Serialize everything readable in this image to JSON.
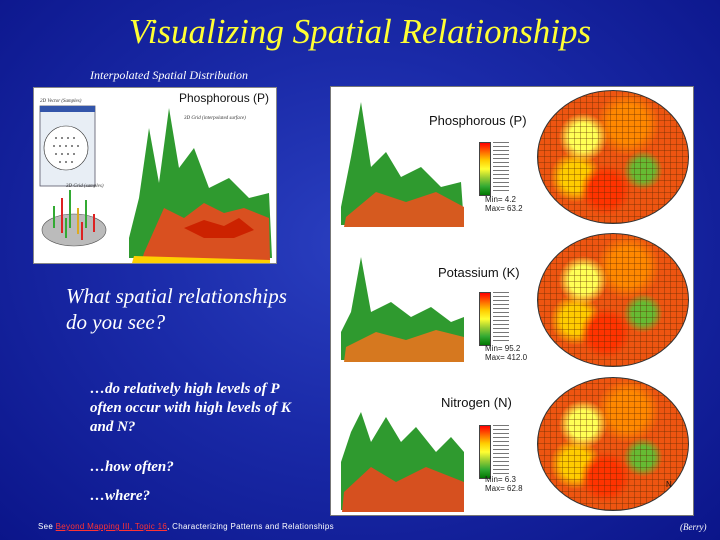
{
  "title": "Visualizing Spatial Relationships",
  "subtitle": "Interpolated Spatial Distribution",
  "left_panel": {
    "heading": "Phosphorous (P)",
    "label_vector": "2D Vector (Samples)",
    "label_grid": "3D Grid (interpolated surface)",
    "label_samples": "3D Grid (samples)"
  },
  "maps": [
    {
      "name": "Phosphorous (P)",
      "min": "Min= 4.2",
      "max": "Max= 63.2"
    },
    {
      "name": "Potassium (K)",
      "min": "Min= 95.2",
      "max": "Max= 412.0"
    },
    {
      "name": "Nitrogen (N)",
      "min": "Min= 6.3",
      "max": "Max= 62.8"
    }
  ],
  "north_label": "N",
  "question": "What spatial relationships do you see?",
  "bullets": [
    "…do relatively high levels of P often occur with high levels of K and N?",
    "…how often?",
    "…where?"
  ],
  "footer": {
    "prefix": "See ",
    "link": "Beyond Mapping III, Topic 16",
    "suffix": ", Characterizing Patterns and Relationships"
  },
  "credit": "(Berry)",
  "colors": {
    "title": "#ffff33",
    "background": "#1a2aa8",
    "link": "#ff3333"
  }
}
